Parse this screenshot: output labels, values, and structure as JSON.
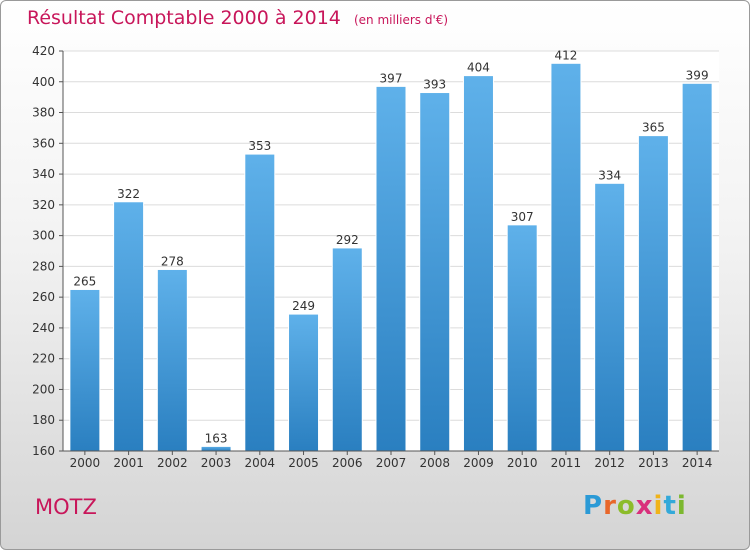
{
  "header": {
    "title": "Résultat Comptable 2000 à 2014",
    "subtitle": "(en milliers d'€)"
  },
  "footer": {
    "commune": "MOTZ",
    "logo": "Proxiti"
  },
  "colors": {
    "title": "#c8165a",
    "bar_light": "#5fb1ea",
    "bar_dark": "#2a7fc0",
    "grid": "#dcdcdc"
  },
  "chart_data": {
    "type": "bar",
    "title": "Résultat Comptable 2000 à 2014",
    "subtitle": "(en milliers d'€)",
    "xlabel": "",
    "ylabel": "",
    "categories": [
      "2000",
      "2001",
      "2002",
      "2003",
      "2004",
      "2005",
      "2006",
      "2007",
      "2008",
      "2009",
      "2010",
      "2011",
      "2012",
      "2013",
      "2014"
    ],
    "values": [
      265,
      322,
      278,
      163,
      353,
      249,
      292,
      397,
      393,
      404,
      307,
      412,
      334,
      365,
      399
    ],
    "ylim": [
      160,
      420
    ],
    "yticks": [
      160,
      180,
      200,
      220,
      240,
      260,
      280,
      300,
      320,
      340,
      360,
      380,
      400,
      420
    ],
    "grid": true,
    "data_labels": true
  }
}
